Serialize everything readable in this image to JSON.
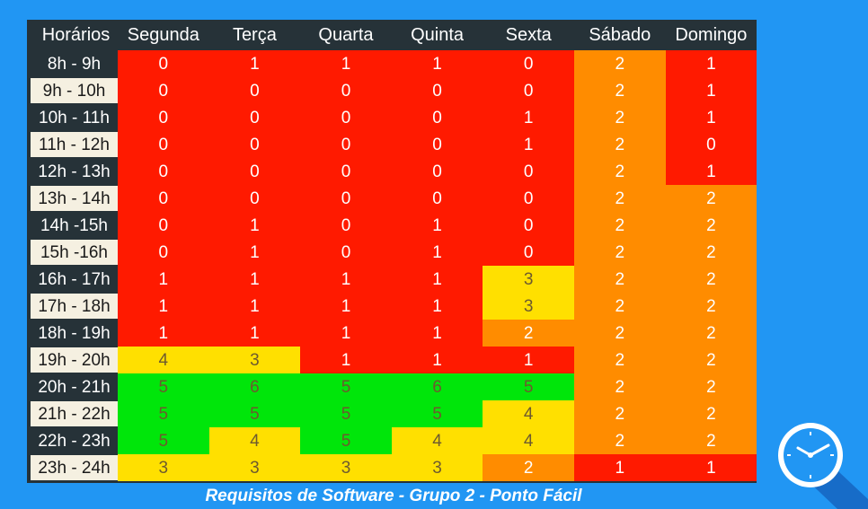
{
  "chart_data": {
    "type": "heatmap",
    "corner_label": "Horários",
    "columns": [
      "Segunda",
      "Terça",
      "Quarta",
      "Quinta",
      "Sexta",
      "Sábado",
      "Domingo"
    ],
    "rows": [
      "8h - 9h",
      "9h - 10h",
      "10h - 11h",
      "11h - 12h",
      "12h - 13h",
      "13h - 14h",
      "14h -15h",
      "15h -16h",
      "16h - 17h",
      "17h - 18h",
      "18h - 19h",
      "19h - 20h",
      "20h - 21h",
      "21h - 22h",
      "22h - 23h",
      "23h - 24h"
    ],
    "values": [
      [
        0,
        1,
        1,
        1,
        0,
        2,
        1
      ],
      [
        0,
        0,
        0,
        0,
        0,
        2,
        1
      ],
      [
        0,
        0,
        0,
        0,
        1,
        2,
        1
      ],
      [
        0,
        0,
        0,
        0,
        1,
        2,
        0
      ],
      [
        0,
        0,
        0,
        0,
        0,
        2,
        1
      ],
      [
        0,
        0,
        0,
        0,
        0,
        2,
        2
      ],
      [
        0,
        1,
        0,
        1,
        0,
        2,
        2
      ],
      [
        0,
        1,
        0,
        1,
        0,
        2,
        2
      ],
      [
        1,
        1,
        1,
        1,
        3,
        2,
        2
      ],
      [
        1,
        1,
        1,
        1,
        3,
        2,
        2
      ],
      [
        1,
        1,
        1,
        1,
        2,
        2,
        2
      ],
      [
        4,
        3,
        1,
        1,
        1,
        2,
        2
      ],
      [
        5,
        6,
        5,
        6,
        5,
        2,
        2
      ],
      [
        5,
        5,
        5,
        5,
        4,
        2,
        2
      ],
      [
        5,
        4,
        5,
        4,
        4,
        2,
        2
      ],
      [
        3,
        3,
        3,
        3,
        2,
        1,
        1
      ]
    ],
    "color_scale": {
      "0": "#ff1a00",
      "1": "#ff1a00",
      "2": "#ff8c00",
      "3": "#ffe000",
      "4": "#ffe000",
      "5": "#00e60a",
      "6": "#00e60a"
    }
  },
  "caption": "Requisitos de Software - Grupo 2 - Ponto Fácil",
  "icons": {
    "corner_icon": "clock-icon"
  }
}
